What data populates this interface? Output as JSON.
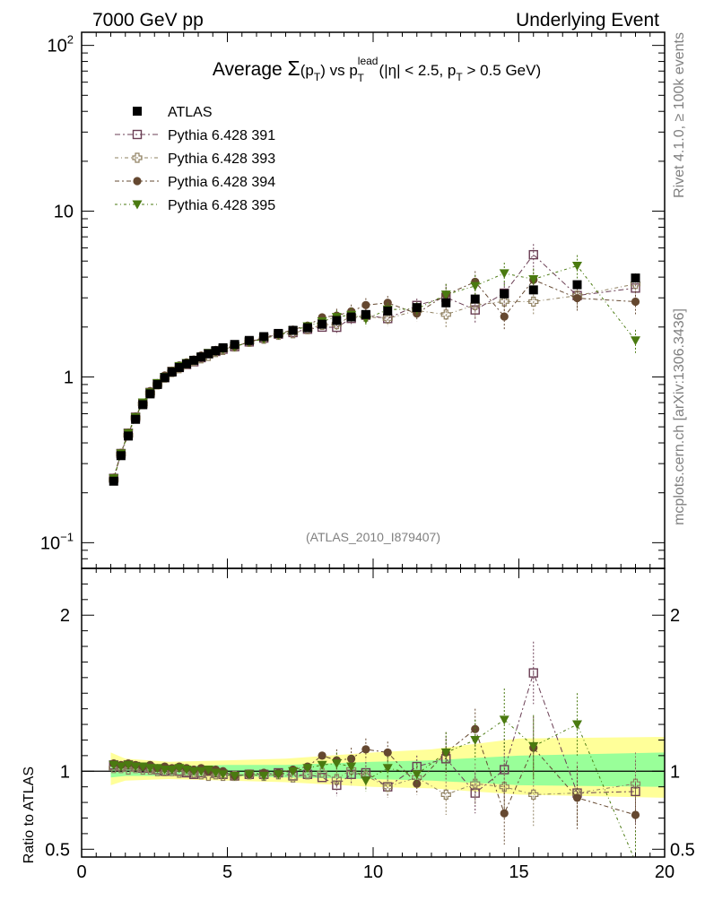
{
  "header": {
    "left": "7000 GeV pp",
    "right": "Underlying Event"
  },
  "side_texts": {
    "rivet": "Rivet 4.1.0, ≥ 100k events",
    "mcplots": "mcplots.cern.ch [arXiv:1306.3436]"
  },
  "analysis_id": "(ATLAS_2010_I879407)",
  "title": {
    "prefix": "Average ",
    "sigma": "Σ",
    "pt_open": "(p",
    "pt_sub": "T",
    "pt_close": ")",
    "vs": " vs p",
    "lead_sup": "lead",
    "lead_sub": "T",
    "cut1": " (|η| < 2.5, p",
    "cut_sub": "T",
    "cut2": " > 0.5 GeV)"
  },
  "colors": {
    "data": "#000000",
    "s391": "#6b3f55",
    "s393": "#8f8060",
    "s394": "#654830",
    "s395": "#4a7a10",
    "band_outer": "#ffff99",
    "band_inner": "#99ff99"
  },
  "chart_data": {
    "type": "scatter",
    "main": {
      "y_scale": "log",
      "ylim": [
        0.07,
        120
      ],
      "y_tick_labels": [
        {
          "base": "10",
          "exp": "2",
          "value": 100
        },
        {
          "base": "10",
          "exp": "",
          "value": 10
        },
        {
          "base": "1",
          "exp": "",
          "value": 1
        },
        {
          "base": "10",
          "exp": "−1",
          "value": 0.1
        }
      ]
    },
    "ratio": {
      "ylabel": "Ratio to ATLAS",
      "ylim": [
        0.45,
        2.3
      ],
      "y_tick_labels": [
        {
          "label": "2",
          "value": 2
        },
        {
          "label": "1",
          "value": 1
        },
        {
          "label": "0.5",
          "value": 0.5
        }
      ],
      "band_outer": [
        [
          1.0,
          0.91,
          1.12
        ],
        [
          1.5,
          0.94,
          1.08
        ],
        [
          3.0,
          0.95,
          1.06
        ],
        [
          5.0,
          0.94,
          1.07
        ],
        [
          7.0,
          0.93,
          1.08
        ],
        [
          10.0,
          0.9,
          1.12
        ],
        [
          12.0,
          0.89,
          1.14
        ],
        [
          15.0,
          0.85,
          1.21
        ],
        [
          20.0,
          0.83,
          1.22
        ]
      ],
      "band_inner": [
        [
          1.0,
          0.96,
          1.06
        ],
        [
          1.5,
          0.97,
          1.04
        ],
        [
          3.0,
          0.97,
          1.03
        ],
        [
          5.0,
          0.97,
          1.04
        ],
        [
          7.0,
          0.96,
          1.04
        ],
        [
          10.0,
          0.95,
          1.06
        ],
        [
          12.0,
          0.94,
          1.07
        ],
        [
          15.0,
          0.91,
          1.1
        ],
        [
          20.0,
          0.9,
          1.12
        ]
      ]
    },
    "xlim": [
      0,
      20
    ],
    "x_tick_labels": [
      "0",
      "5",
      "10",
      "15",
      "20"
    ],
    "x": [
      1.1,
      1.35,
      1.6,
      1.85,
      2.1,
      2.35,
      2.6,
      2.85,
      3.1,
      3.35,
      3.6,
      3.85,
      4.1,
      4.35,
      4.6,
      4.85,
      5.25,
      5.75,
      6.25,
      6.75,
      7.25,
      7.75,
      8.25,
      8.75,
      9.25,
      9.75,
      10.5,
      11.5,
      12.5,
      13.5,
      14.5,
      15.5,
      17.0,
      19.0
    ],
    "atlas": [
      0.235,
      0.335,
      0.44,
      0.555,
      0.68,
      0.79,
      0.9,
      0.99,
      1.07,
      1.14,
      1.2,
      1.26,
      1.32,
      1.38,
      1.44,
      1.5,
      1.57,
      1.66,
      1.75,
      1.83,
      1.91,
      1.98,
      2.08,
      2.19,
      2.3,
      2.38,
      2.5,
      2.62,
      2.8,
      2.95,
      3.17,
      3.35,
      3.6,
      3.95
    ],
    "series": [
      {
        "name": "Pythia 6.428 391",
        "key": "s391",
        "marker": "open-square",
        "ratio": [
          1.04,
          1.03,
          1.04,
          1.03,
          1.02,
          1.02,
          1.01,
          1.0,
          1.01,
          1.0,
          0.99,
          0.98,
          0.99,
          1.0,
          0.99,
          0.98,
          0.97,
          0.98,
          0.98,
          0.99,
          0.97,
          0.98,
          0.96,
          0.91,
          0.98,
          0.99,
          0.9,
          1.03,
          1.08,
          0.86,
          1.01,
          1.63,
          0.86,
          0.87
        ]
      },
      {
        "name": "Pythia 6.428 393",
        "key": "s393",
        "marker": "open-cross",
        "ratio": [
          1.02,
          1.02,
          1.01,
          1.02,
          1.01,
          1.01,
          1.0,
          1.0,
          1.0,
          0.99,
          1.0,
          0.99,
          0.98,
          0.97,
          0.98,
          0.97,
          0.97,
          0.98,
          0.97,
          0.98,
          0.96,
          0.98,
          0.99,
          0.95,
          1.01,
          0.97,
          0.9,
          0.96,
          0.85,
          0.92,
          0.9,
          0.85,
          0.86,
          0.92
        ]
      },
      {
        "name": "Pythia 6.428 394",
        "key": "s394",
        "marker": "filled-circle",
        "ratio": [
          1.05,
          1.04,
          1.05,
          1.04,
          1.03,
          1.04,
          1.02,
          1.03,
          1.02,
          1.03,
          1.02,
          1.01,
          1.02,
          1.0,
          1.01,
          1.0,
          0.97,
          0.98,
          0.99,
          0.99,
          1.01,
          1.03,
          1.1,
          1.07,
          1.08,
          1.14,
          1.12,
          0.92,
          1.12,
          1.27,
          0.73,
          1.15,
          0.83,
          0.72
        ]
      },
      {
        "name": "Pythia 6.428 395",
        "key": "s395",
        "marker": "filled-triangle-down",
        "ratio": [
          1.04,
          1.03,
          1.04,
          1.03,
          1.03,
          1.02,
          1.02,
          1.01,
          1.01,
          1.02,
          1.01,
          1.0,
          1.0,
          1.01,
          0.99,
          0.98,
          0.97,
          0.98,
          0.97,
          0.98,
          1.0,
          1.02,
          1.04,
          1.05,
          1.03,
          0.94,
          1.02,
          0.98,
          1.12,
          1.2,
          1.33,
          1.16,
          1.3,
          0.42
        ]
      }
    ],
    "legend_position": "top-left"
  }
}
